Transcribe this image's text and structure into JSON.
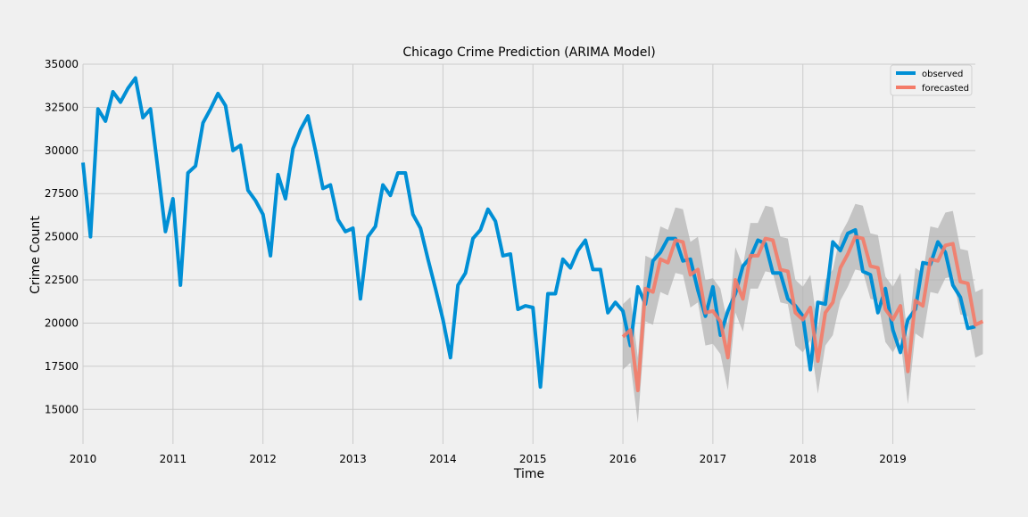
{
  "chart_data": {
    "type": "line",
    "title": "Chicago Crime Prediction (ARIMA Model)",
    "xlabel": "Time",
    "ylabel": "Crime Count",
    "xlim": [
      "2010-01",
      "2019-12"
    ],
    "ylim": [
      13000,
      35000
    ],
    "x_ticks": [
      "2010",
      "2011",
      "2012",
      "2013",
      "2014",
      "2015",
      "2016",
      "2017",
      "2018",
      "2019"
    ],
    "y_ticks": [
      "15000",
      "17500",
      "20000",
      "22500",
      "25000",
      "27500",
      "30000",
      "32500",
      "35000"
    ],
    "grid": true,
    "legend_position": "top-right",
    "colors": {
      "observed": "#008fd5",
      "forecasted": "#f47b68",
      "band": "#b0b0b0"
    },
    "series": [
      {
        "name": "observed",
        "start": "2010-01",
        "values": [
          29300,
          25000,
          32400,
          31700,
          33400,
          32800,
          33600,
          34200,
          31900,
          32400,
          28900,
          25300,
          27200,
          22200,
          28700,
          29100,
          31600,
          32400,
          33300,
          32600,
          30000,
          30300,
          27700,
          27100,
          26300,
          23900,
          28600,
          27200,
          30100,
          31200,
          32000,
          30000,
          27800,
          28000,
          26000,
          25300,
          25500,
          21400,
          25000,
          25600,
          28000,
          27400,
          28700,
          28700,
          26300,
          25500,
          23700,
          22000,
          20200,
          18000,
          22200,
          22900,
          24900,
          25400,
          26600,
          25900,
          23900,
          24000,
          20800,
          21000,
          20900,
          16300,
          21700,
          21700,
          23700,
          23200,
          24200,
          24800,
          23100,
          23100,
          20600,
          21200,
          20700,
          18700,
          22100,
          21100,
          23600,
          24100,
          24900,
          24900,
          23600,
          23700,
          21900,
          20400,
          22100,
          19300,
          20700,
          21700,
          23300,
          23800,
          24800,
          24600,
          22900,
          22900,
          21400,
          21000,
          20400,
          17300,
          21200,
          21100,
          24700,
          24200,
          25200,
          25400,
          23000,
          22800,
          20600,
          22000,
          19600,
          18300,
          20200,
          20800,
          23500,
          23400,
          24700,
          24100,
          22200,
          21500,
          19700,
          19800
        ]
      },
      {
        "name": "forecasted",
        "start": "2016-01",
        "values": [
          19200,
          19600,
          16100,
          22000,
          21800,
          23700,
          23500,
          24800,
          24700,
          22800,
          23100,
          20600,
          20700,
          20100,
          18000,
          22500,
          21400,
          23900,
          23900,
          24900,
          24800,
          23100,
          23000,
          20600,
          20200,
          20900,
          17800,
          20600,
          21200,
          23200,
          24000,
          25000,
          24900,
          23300,
          23200,
          20800,
          20200,
          21000,
          17200,
          21300,
          21000,
          23700,
          23600,
          24500,
          24600,
          22400,
          22300,
          19900,
          20100
        ],
        "lower": [
          17300,
          17700,
          14200,
          20100,
          19900,
          21800,
          21600,
          22900,
          22800,
          20900,
          21200,
          18700,
          18800,
          18200,
          16100,
          20600,
          19500,
          22000,
          22000,
          23000,
          22900,
          21200,
          21100,
          18700,
          18300,
          19000,
          15900,
          18700,
          19300,
          21300,
          22100,
          23100,
          23000,
          21400,
          21300,
          18900,
          18300,
          19100,
          15300,
          19400,
          19100,
          21800,
          21700,
          22600,
          22700,
          20500,
          20400,
          18000,
          18200
        ],
        "upper": [
          21100,
          21500,
          18000,
          23900,
          23700,
          25600,
          25400,
          26700,
          26600,
          24700,
          25000,
          22500,
          22600,
          22000,
          19900,
          24400,
          23300,
          25800,
          25800,
          26800,
          26700,
          25000,
          24900,
          22500,
          22100,
          22800,
          19700,
          22500,
          23100,
          25100,
          25900,
          26900,
          26800,
          25200,
          25100,
          22700,
          22100,
          22900,
          19100,
          23200,
          22900,
          25600,
          25500,
          26400,
          26500,
          24300,
          24200,
          21800,
          22000
        ]
      }
    ]
  }
}
